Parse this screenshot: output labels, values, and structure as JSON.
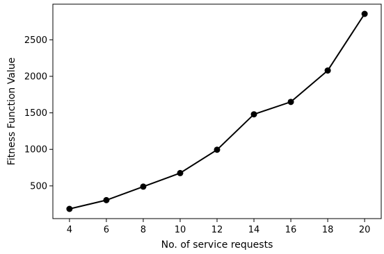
{
  "chart_data": {
    "type": "line",
    "xlabel": "No. of service requests",
    "ylabel": "Fitness Function Value",
    "x": [
      4,
      6,
      8,
      10,
      12,
      14,
      16,
      18,
      20
    ],
    "series": [
      {
        "values": [
          185,
          305,
          490,
          675,
          995,
          1480,
          1650,
          2080,
          2855
        ]
      }
    ],
    "xticks": [
      4,
      6,
      8,
      10,
      12,
      14,
      16,
      18,
      20
    ],
    "yticks": [
      500,
      1000,
      1500,
      2000,
      2500
    ],
    "xlim": [
      3.1,
      20.9
    ],
    "ylim": [
      52,
      2988
    ],
    "grid": false,
    "line_color": "#000000",
    "marker_color": "#000000"
  }
}
